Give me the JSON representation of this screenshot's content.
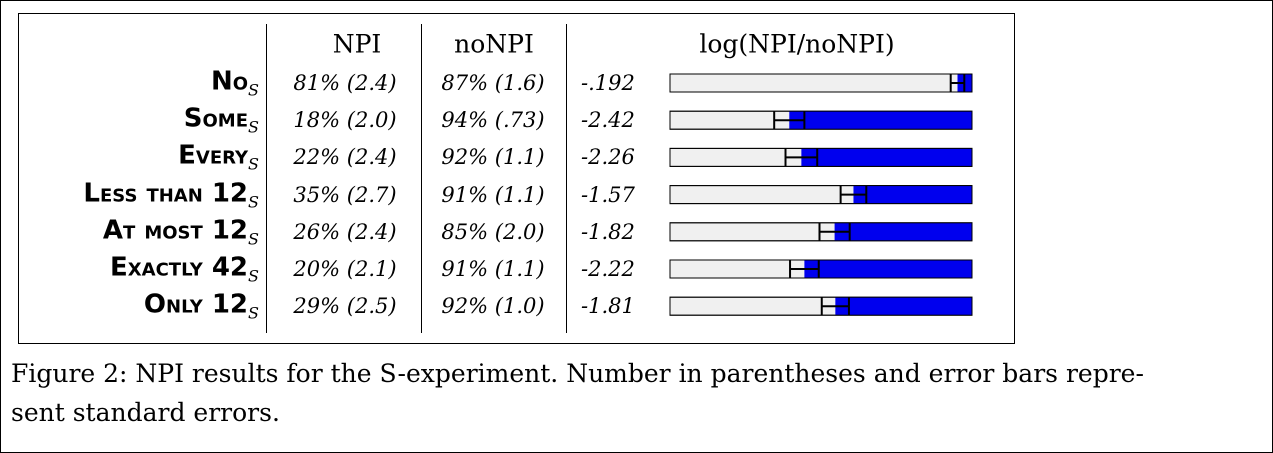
{
  "table": {
    "header": [
      "NPI",
      "noNPI",
      "log(NPI/noNPI)"
    ],
    "rows": [
      {
        "label": "No",
        "subscript": "S",
        "npi": "81% (2.4)",
        "nonpi": "87% (1.6)",
        "log": "-.192"
      },
      {
        "label": "Some",
        "subscript": "S",
        "npi": "18% (2.0)",
        "nonpi": "94% (.73)",
        "log": "-2.42"
      },
      {
        "label": "Every",
        "subscript": "S",
        "npi": "22% (2.4)",
        "nonpi": "92% (1.1)",
        "log": "-2.26"
      },
      {
        "label": "Less than 12",
        "subscript": "S",
        "npi": "35% (2.7)",
        "nonpi": "91% (1.1)",
        "log": "-1.57"
      },
      {
        "label": "At most 12",
        "subscript": "S",
        "npi": "26% (2.4)",
        "nonpi": "85% (2.0)",
        "log": "-1.82"
      },
      {
        "label": "Exactly 42",
        "subscript": "S",
        "npi": "20% (2.1)",
        "nonpi": "91% (1.1)",
        "log": "-2.22"
      },
      {
        "label": "Only 12",
        "subscript": "S",
        "npi": "29% (2.5)",
        "nonpi": "92% (1.0)",
        "log": "-1.81"
      }
    ]
  },
  "chart_data": {
    "type": "bar",
    "values": [
      -0.192,
      -2.42,
      -2.26,
      -1.57,
      -1.82,
      -2.22,
      -1.81
    ],
    "errors": [
      0.09,
      0.2,
      0.21,
      0.17,
      0.2,
      0.19,
      0.18
    ],
    "xlim": [
      -4,
      0
    ],
    "color": "#0000ee",
    "background": "#f0f0f0"
  },
  "caption": [
    "Figure 2: NPI results for the S-experiment. Number in parentheses and error bars repre-",
    "sent standard errors."
  ]
}
